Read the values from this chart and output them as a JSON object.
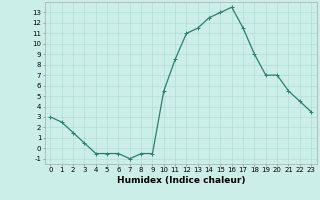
{
  "x": [
    0,
    1,
    2,
    3,
    4,
    5,
    6,
    7,
    8,
    9,
    10,
    11,
    12,
    13,
    14,
    15,
    16,
    17,
    18,
    19,
    20,
    21,
    22,
    23
  ],
  "y": [
    3,
    2.5,
    1.5,
    0.5,
    -0.5,
    -0.5,
    -0.5,
    -1,
    -0.5,
    -0.5,
    5.5,
    8.5,
    11,
    11.5,
    12.5,
    13,
    13.5,
    11.5,
    9,
    7,
    7,
    5.5,
    4.5,
    3.5
  ],
  "line_color": "#2e7d6e",
  "marker": "+",
  "marker_size": 3,
  "bg_color": "#cceee8",
  "grid_color": "#b0ddd8",
  "xlabel": "Humidex (Indice chaleur)",
  "xlim": [
    -0.5,
    23.5
  ],
  "ylim": [
    -1.5,
    14.0
  ],
  "xticks": [
    0,
    1,
    2,
    3,
    4,
    5,
    6,
    7,
    8,
    9,
    10,
    11,
    12,
    13,
    14,
    15,
    16,
    17,
    18,
    19,
    20,
    21,
    22,
    23
  ],
  "yticks": [
    -1,
    0,
    1,
    2,
    3,
    4,
    5,
    6,
    7,
    8,
    9,
    10,
    11,
    12,
    13
  ],
  "tick_fontsize": 5.0,
  "label_fontsize": 6.5,
  "line_width": 0.9,
  "marker_edge_width": 0.7
}
